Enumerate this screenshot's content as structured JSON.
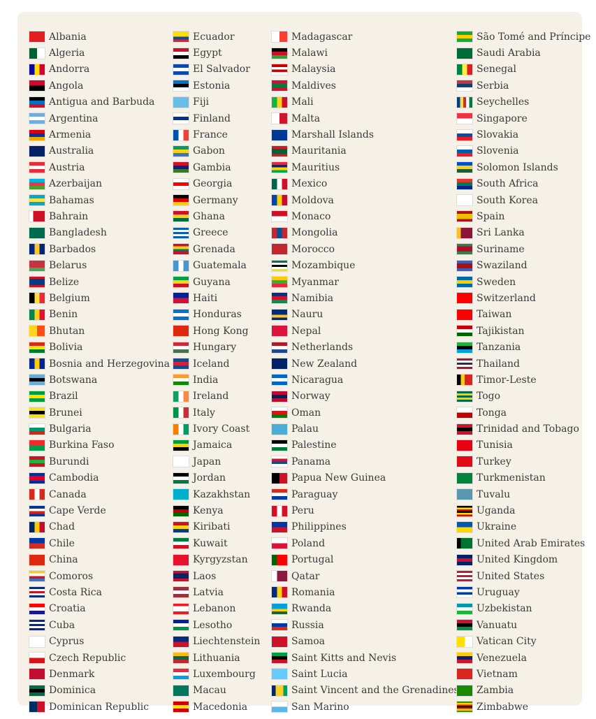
{
  "columns": [
    [
      [
        "Albania",
        [
          "#e41e20"
        ]
      ],
      [
        "Algeria",
        [
          "#006233",
          "#fff"
        ],
        1
      ],
      [
        "Andorra",
        [
          "#10069f",
          "#fedf00",
          "#d50032"
        ],
        1
      ],
      [
        "Angola",
        [
          "#cc092f",
          "#000"
        ]
      ],
      [
        "Antigua and Barbuda",
        [
          "#000",
          "#0072c6",
          "#ce1126"
        ]
      ],
      [
        "Argentina",
        [
          "#74acdf",
          "#fff",
          "#74acdf"
        ]
      ],
      [
        "Armenia",
        [
          "#d90012",
          "#0033a0",
          "#f2a800"
        ]
      ],
      [
        "Australia",
        [
          "#012169"
        ]
      ],
      [
        "Austria",
        [
          "#ed2939",
          "#fff",
          "#ed2939"
        ]
      ],
      [
        "Azerbaijan",
        [
          "#00b5e2",
          "#ef3340",
          "#509e2f"
        ]
      ],
      [
        "Bahamas",
        [
          "#00abc9",
          "#fae042",
          "#00abc9"
        ]
      ],
      [
        "Bahrain",
        [
          "#fff",
          "#ce1126",
          "#ce1126",
          "#ce1126"
        ],
        1
      ],
      [
        "Bangladesh",
        [
          "#006a4e"
        ]
      ],
      [
        "Barbados",
        [
          "#00267f",
          "#ffc726",
          "#00267f"
        ],
        1
      ],
      [
        "Belarus",
        [
          "#c8313e",
          "#c8313e",
          "#4aa657"
        ]
      ],
      [
        "Belize",
        [
          "#ce1126",
          "#003f87",
          "#003f87",
          "#003f87",
          "#ce1126"
        ]
      ],
      [
        "Belgium",
        [
          "#000",
          "#fae042",
          "#ed2939"
        ],
        1
      ],
      [
        "Benin",
        [
          "#008751",
          "#fcd116",
          "#e8112d"
        ],
        1
      ],
      [
        "Bhutan",
        [
          "#ffd520",
          "#ff4e12"
        ],
        1
      ],
      [
        "Bolivia",
        [
          "#d52b1e",
          "#f9e300",
          "#007934"
        ]
      ],
      [
        "Bosnia and Herzegovina",
        [
          "#002395",
          "#fecb00",
          "#002395"
        ],
        1
      ],
      [
        "Botswana",
        [
          "#6da9d2",
          "#000",
          "#6da9d2"
        ]
      ],
      [
        "Brazil",
        [
          "#009c3b",
          "#ffdf00",
          "#009c3b"
        ]
      ],
      [
        "Brunei",
        [
          "#f7e017",
          "#000",
          "#f7e017"
        ]
      ],
      [
        "Bulgaria",
        [
          "#fff",
          "#00966e",
          "#d62612"
        ]
      ],
      [
        "Burkina Faso",
        [
          "#ef2b2d",
          "#009e49"
        ]
      ],
      [
        "Burundi",
        [
          "#ce1126",
          "#1eb53a",
          "#ce1126"
        ]
      ],
      [
        "Cambodia",
        [
          "#032ea1",
          "#e00025",
          "#e00025",
          "#032ea1"
        ]
      ],
      [
        "Canada",
        [
          "#d52b1e",
          "#fff",
          "#d52b1e"
        ],
        1
      ],
      [
        "Cape Verde",
        [
          "#003893",
          "#fff",
          "#cf2027",
          "#003893"
        ]
      ],
      [
        "Chad",
        [
          "#002664",
          "#fecb00",
          "#c60c30"
        ],
        1
      ],
      [
        "Chile",
        [
          "#0039a6",
          "#d52b1e"
        ]
      ],
      [
        "China",
        [
          "#de2910"
        ]
      ],
      [
        "Comoros",
        [
          "#ffc61e",
          "#fff",
          "#ce1126",
          "#3a75c4"
        ]
      ],
      [
        "Costa Rica",
        [
          "#002b7f",
          "#fff",
          "#ce1126",
          "#fff",
          "#002b7f"
        ]
      ],
      [
        "Croatia",
        [
          "#ff0000",
          "#fff",
          "#171796"
        ]
      ],
      [
        "Cuba",
        [
          "#002a8f",
          "#fff",
          "#002a8f",
          "#fff",
          "#002a8f"
        ]
      ],
      [
        "Cyprus",
        [
          "#fff"
        ]
      ],
      [
        "Czech Republic",
        [
          "#fff",
          "#d7141a"
        ]
      ],
      [
        "Denmark",
        [
          "#c60c30"
        ]
      ],
      [
        "Dominica",
        [
          "#006b3f",
          "#000",
          "#006b3f"
        ]
      ],
      [
        "Dominican Republic",
        [
          "#002d62",
          "#ce1126"
        ],
        1
      ]
    ],
    [
      [
        "Ecuador",
        [
          "#ffdd00",
          "#ffdd00",
          "#034ea2",
          "#ed1c24"
        ]
      ],
      [
        "Egypt",
        [
          "#ce1126",
          "#fff",
          "#000"
        ]
      ],
      [
        "El Salvador",
        [
          "#0f47af",
          "#fff",
          "#0f47af"
        ]
      ],
      [
        "Estonia",
        [
          "#0072ce",
          "#000",
          "#fff"
        ]
      ],
      [
        "Fiji",
        [
          "#68bfe5"
        ]
      ],
      [
        "Finland",
        [
          "#fff",
          "#003580",
          "#fff"
        ]
      ],
      [
        "France",
        [
          "#0055a4",
          "#fff",
          "#ef4135"
        ],
        1
      ],
      [
        "Gabon",
        [
          "#009e60",
          "#fcd116",
          "#3a75c4"
        ]
      ],
      [
        "Gambia",
        [
          "#ce1126",
          "#0c1c8c",
          "#3a7728"
        ]
      ],
      [
        "Georgia",
        [
          "#fff",
          "#ff0000",
          "#fff"
        ]
      ],
      [
        "Germany",
        [
          "#000",
          "#dd0000",
          "#ffce00"
        ]
      ],
      [
        "Ghana",
        [
          "#ce1126",
          "#fcd116",
          "#006b3f"
        ]
      ],
      [
        "Greece",
        [
          "#0d5eaf",
          "#fff",
          "#0d5eaf",
          "#fff",
          "#0d5eaf"
        ]
      ],
      [
        "Grenada",
        [
          "#ce1126",
          "#fcd116",
          "#007a5e",
          "#ce1126"
        ]
      ],
      [
        "Guatemala",
        [
          "#4997d0",
          "#fff",
          "#4997d0"
        ],
        1
      ],
      [
        "Guyana",
        [
          "#009e49",
          "#fcd116",
          "#ce1126"
        ]
      ],
      [
        "Haiti",
        [
          "#00209f",
          "#d21034"
        ]
      ],
      [
        "Honduras",
        [
          "#0073cf",
          "#fff",
          "#0073cf"
        ]
      ],
      [
        "Hong Kong",
        [
          "#de2910"
        ]
      ],
      [
        "Hungary",
        [
          "#ce2939",
          "#fff",
          "#477050"
        ]
      ],
      [
        "Iceland",
        [
          "#02529c",
          "#dc1e35",
          "#02529c"
        ]
      ],
      [
        "India",
        [
          "#ff9933",
          "#fff",
          "#138808"
        ]
      ],
      [
        "Ireland",
        [
          "#169b62",
          "#fff",
          "#ff883e"
        ],
        1
      ],
      [
        "Italy",
        [
          "#009246",
          "#fff",
          "#ce2b37"
        ],
        1
      ],
      [
        "Ivory Coast",
        [
          "#f77f00",
          "#fff",
          "#009e60"
        ],
        1
      ],
      [
        "Jamaica",
        [
          "#009b3a",
          "#fed100",
          "#000"
        ]
      ],
      [
        "Japan",
        [
          "#fff"
        ]
      ],
      [
        "Jordan",
        [
          "#000",
          "#fff",
          "#007a3d"
        ]
      ],
      [
        "Kazakhstan",
        [
          "#00afca"
        ]
      ],
      [
        "Kenya",
        [
          "#000",
          "#bb0000",
          "#006600"
        ]
      ],
      [
        "Kiribati",
        [
          "#ce1126",
          "#fcd116",
          "#003f87"
        ]
      ],
      [
        "Kuwait",
        [
          "#007a3d",
          "#fff",
          "#ce1126"
        ]
      ],
      [
        "Kyrgyzstan",
        [
          "#e8112d"
        ]
      ],
      [
        "Laos",
        [
          "#ce1126",
          "#002868",
          "#002868",
          "#ce1126"
        ]
      ],
      [
        "Latvia",
        [
          "#9e3039",
          "#fff",
          "#9e3039"
        ]
      ],
      [
        "Lebanon",
        [
          "#ed1c24",
          "#fff",
          "#fff",
          "#ed1c24"
        ]
      ],
      [
        "Lesotho",
        [
          "#00209f",
          "#fff",
          "#009543"
        ]
      ],
      [
        "Liechtenstein",
        [
          "#002b7f",
          "#ce1126"
        ]
      ],
      [
        "Lithuania",
        [
          "#fdb913",
          "#006a44",
          "#c1272d"
        ]
      ],
      [
        "Luxembourg",
        [
          "#ed2939",
          "#fff",
          "#00a1de"
        ]
      ],
      [
        "Macau",
        [
          "#00785e"
        ]
      ],
      [
        "Macedonia",
        [
          "#d20000",
          "#ffe600",
          "#d20000"
        ]
      ]
    ],
    [
      [
        "Madagascar",
        [
          "#fff",
          "#fc3d32"
        ],
        1
      ],
      [
        "Malawi",
        [
          "#000",
          "#ce1126",
          "#339e35"
        ]
      ],
      [
        "Malaysia",
        [
          "#cc0001",
          "#fff",
          "#cc0001",
          "#fff"
        ]
      ],
      [
        "Maldives",
        [
          "#d21034",
          "#007e3a",
          "#d21034"
        ]
      ],
      [
        "Mali",
        [
          "#14b53a",
          "#fcd116",
          "#ce1126"
        ],
        1
      ],
      [
        "Malta",
        [
          "#fff",
          "#cf142b"
        ],
        1
      ],
      [
        "Marshall Islands",
        [
          "#003893"
        ]
      ],
      [
        "Mauritania",
        [
          "#d01c1f",
          "#006233",
          "#006233",
          "#d01c1f"
        ]
      ],
      [
        "Mauritius",
        [
          "#ea2839",
          "#1a206d",
          "#ffd500",
          "#00a551"
        ]
      ],
      [
        "Mexico",
        [
          "#006847",
          "#fff",
          "#ce1126"
        ],
        1
      ],
      [
        "Moldova",
        [
          "#0046ae",
          "#ffd200",
          "#cc092f"
        ],
        1
      ],
      [
        "Monaco",
        [
          "#ce1126",
          "#fff"
        ]
      ],
      [
        "Mongolia",
        [
          "#c4272f",
          "#015197",
          "#c4272f"
        ],
        1
      ],
      [
        "Morocco",
        [
          "#c1272d"
        ]
      ],
      [
        "Mozambique",
        [
          "#007168",
          "#fff",
          "#000",
          "#fff",
          "#fce100"
        ]
      ],
      [
        "Myanmar",
        [
          "#fecb00",
          "#34b233",
          "#ea2839"
        ]
      ],
      [
        "Namibia",
        [
          "#003580",
          "#d21034",
          "#009543"
        ]
      ],
      [
        "Nauru",
        [
          "#002b7f",
          "#002b7f",
          "#ffc61e",
          "#002b7f"
        ]
      ],
      [
        "Nepal",
        [
          "#dc143c"
        ]
      ],
      [
        "Netherlands",
        [
          "#ae1c28",
          "#fff",
          "#21468b"
        ]
      ],
      [
        "New Zealand",
        [
          "#012169"
        ]
      ],
      [
        "Nicaragua",
        [
          "#0067c6",
          "#fff",
          "#0067c6"
        ]
      ],
      [
        "Norway",
        [
          "#ba0c2f",
          "#00205b",
          "#ba0c2f"
        ]
      ],
      [
        "Oman",
        [
          "#fff",
          "#db161b",
          "#008000"
        ]
      ],
      [
        "Palau",
        [
          "#4aadd6"
        ]
      ],
      [
        "Palestine",
        [
          "#000",
          "#fff",
          "#007a3d"
        ]
      ],
      [
        "Panama",
        [
          "#fff",
          "#d21034",
          "#005293",
          "#fff"
        ]
      ],
      [
        "Papua New Guinea",
        [
          "#000",
          "#ce1126"
        ],
        1
      ],
      [
        "Paraguay",
        [
          "#d52b1e",
          "#fff",
          "#0038a8"
        ]
      ],
      [
        "Peru",
        [
          "#d91023",
          "#fff",
          "#d91023"
        ],
        1
      ],
      [
        "Philippines",
        [
          "#0038a8",
          "#ce1126"
        ]
      ],
      [
        "Poland",
        [
          "#fff",
          "#dc143c"
        ]
      ],
      [
        "Portugal",
        [
          "#006600",
          "#ff0000",
          "#ff0000"
        ],
        1
      ],
      [
        "Qatar",
        [
          "#fff",
          "#8d1b3d",
          "#8d1b3d"
        ],
        1
      ],
      [
        "Romania",
        [
          "#002b7f",
          "#fcd116",
          "#ce1126"
        ],
        1
      ],
      [
        "Rwanda",
        [
          "#00a1de",
          "#00a1de",
          "#fad201",
          "#20603d"
        ]
      ],
      [
        "Russia",
        [
          "#fff",
          "#0039a6",
          "#d52b1e"
        ]
      ],
      [
        "Samoa",
        [
          "#ce1126"
        ]
      ],
      [
        "Saint Kitts and Nevis",
        [
          "#009e49",
          "#000",
          "#ce1126"
        ]
      ],
      [
        "Saint Lucia",
        [
          "#66ccff"
        ]
      ],
      [
        "Saint Vincent and the Grenadines",
        [
          "#002674",
          "#fcd022",
          "#fcd022",
          "#009e60"
        ],
        1
      ],
      [
        "San Marino",
        [
          "#fff",
          "#5eb6e4"
        ]
      ]
    ],
    [
      [
        "São Tomé and Príncipe",
        [
          "#12ad2b",
          "#ffce00",
          "#12ad2b"
        ]
      ],
      [
        "Saudi Arabia",
        [
          "#006c35"
        ]
      ],
      [
        "Senegal",
        [
          "#00853f",
          "#fdef42",
          "#e31b23"
        ],
        1
      ],
      [
        "Serbia",
        [
          "#c6363c",
          "#0c4076",
          "#fff"
        ]
      ],
      [
        "Seychelles",
        [
          "#003f87",
          "#fcd856",
          "#d62828",
          "#fff",
          "#007a3d"
        ],
        1
      ],
      [
        "Singapore",
        [
          "#ef3340",
          "#fff"
        ]
      ],
      [
        "Slovakia",
        [
          "#fff",
          "#0b4ea2",
          "#ee1c25"
        ]
      ],
      [
        "Slovenia",
        [
          "#fff",
          "#005da4",
          "#ed1c24"
        ]
      ],
      [
        "Solomon Islands",
        [
          "#0051ba",
          "#fcd116",
          "#215b33"
        ]
      ],
      [
        "South Africa",
        [
          "#de3831",
          "#007a4d",
          "#002395"
        ]
      ],
      [
        "South Korea",
        [
          "#fff"
        ]
      ],
      [
        "Spain",
        [
          "#aa151b",
          "#f1bf00",
          "#f1bf00",
          "#aa151b"
        ]
      ],
      [
        "Sri Lanka",
        [
          "#ffbe29",
          "#8d153a",
          "#8d153a",
          "#8d153a"
        ],
        1
      ],
      [
        "Suriname",
        [
          "#377e3f",
          "#b40a2d",
          "#b40a2d",
          "#377e3f"
        ]
      ],
      [
        "Swaziland",
        [
          "#3e5eb9",
          "#b10c0c",
          "#b10c0c",
          "#3e5eb9"
        ]
      ],
      [
        "Sweden",
        [
          "#006aa7",
          "#fecc00",
          "#006aa7"
        ]
      ],
      [
        "Switzerland",
        [
          "#ff0000"
        ]
      ],
      [
        "Taiwan",
        [
          "#fe0000"
        ]
      ],
      [
        "Tajikistan",
        [
          "#cc0000",
          "#fff",
          "#006600"
        ]
      ],
      [
        "Tanzania",
        [
          "#1eb53a",
          "#000",
          "#00a3dd"
        ]
      ],
      [
        "Thailand",
        [
          "#a51931",
          "#fff",
          "#2d2a4a",
          "#fff",
          "#a51931"
        ]
      ],
      [
        "Timor-Leste",
        [
          "#000",
          "#ffc726",
          "#dc241f",
          "#dc241f"
        ],
        1
      ],
      [
        "Togo",
        [
          "#006a4e",
          "#ffce00",
          "#006a4e",
          "#ffce00",
          "#006a4e"
        ]
      ],
      [
        "Tonga",
        [
          "#fff",
          "#c10000"
        ]
      ],
      [
        "Trinidad and Tobago",
        [
          "#ce1126",
          "#000",
          "#ce1126"
        ]
      ],
      [
        "Tunisia",
        [
          "#e70013"
        ]
      ],
      [
        "Turkey",
        [
          "#e30a17"
        ]
      ],
      [
        "Turkmenistan",
        [
          "#00843d"
        ]
      ],
      [
        "Tuvalu",
        [
          "#5b97b1"
        ]
      ],
      [
        "Uganda",
        [
          "#000",
          "#fcdc04",
          "#d90000",
          "#000",
          "#fcdc04",
          "#d90000"
        ]
      ],
      [
        "Ukraine",
        [
          "#0057b7",
          "#ffd700"
        ]
      ],
      [
        "United Arab Emirates",
        [
          "#000",
          "#00732f",
          "#00732f",
          "#00732f"
        ],
        1
      ],
      [
        "United Kingdom",
        [
          "#012169",
          "#c8102e",
          "#012169"
        ]
      ],
      [
        "United States",
        [
          "#b22234",
          "#fff",
          "#b22234",
          "#fff",
          "#b22234"
        ]
      ],
      [
        "Uruguay",
        [
          "#0038a8",
          "#fff",
          "#0038a8",
          "#fff"
        ]
      ],
      [
        "Uzbekistan",
        [
          "#0099b5",
          "#fff",
          "#1eb53a"
        ]
      ],
      [
        "Vanuatu",
        [
          "#d21034",
          "#000",
          "#009543"
        ]
      ],
      [
        "Vatican City",
        [
          "#ffe000",
          "#fff"
        ],
        1
      ],
      [
        "Venezuela",
        [
          "#ffcc00",
          "#00247d",
          "#cf142b"
        ]
      ],
      [
        "Vietnam",
        [
          "#da251d"
        ]
      ],
      [
        "Zambia",
        [
          "#198a00"
        ]
      ],
      [
        "Zimbabwe",
        [
          "#319208",
          "#ffd200",
          "#de2010",
          "#000",
          "#de2010",
          "#ffd200",
          "#319208"
        ]
      ]
    ]
  ]
}
